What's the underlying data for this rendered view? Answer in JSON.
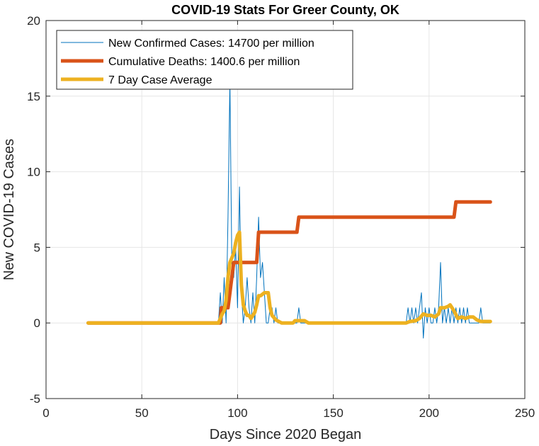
{
  "chart_data": {
    "type": "line",
    "title": "COVID-19 Stats For Greer County, OK",
    "xlabel": "Days Since 2020 Began",
    "ylabel": "New COVID-19 Cases",
    "xlim": [
      0,
      250
    ],
    "ylim": [
      -5,
      20
    ],
    "xticks": [
      0,
      50,
      100,
      150,
      200,
      250
    ],
    "yticks": [
      -5,
      0,
      5,
      10,
      15,
      20
    ],
    "grid": true,
    "legend_position": "top-left",
    "series": [
      {
        "name": "New Confirmed Cases: 14700 per million",
        "color": "#0072BD",
        "style": "thin",
        "points": [
          [
            22,
            0
          ],
          [
            90,
            0
          ],
          [
            91,
            2
          ],
          [
            92,
            0
          ],
          [
            93,
            3
          ],
          [
            94,
            0
          ],
          [
            95,
            7
          ],
          [
            96,
            16
          ],
          [
            97,
            4
          ],
          [
            98,
            3
          ],
          [
            99,
            5
          ],
          [
            100,
            1
          ],
          [
            101,
            9
          ],
          [
            102,
            2
          ],
          [
            103,
            0
          ],
          [
            104,
            1
          ],
          [
            105,
            3
          ],
          [
            106,
            1
          ],
          [
            107,
            0
          ],
          [
            108,
            2
          ],
          [
            109,
            0
          ],
          [
            110,
            3
          ],
          [
            111,
            7
          ],
          [
            112,
            3
          ],
          [
            113,
            4
          ],
          [
            114,
            2
          ],
          [
            115,
            0
          ],
          [
            116,
            0
          ],
          [
            117,
            1
          ],
          [
            118,
            1
          ],
          [
            119,
            0
          ],
          [
            120,
            1
          ],
          [
            121,
            0
          ],
          [
            122,
            0
          ],
          [
            123,
            0
          ],
          [
            130,
            0
          ],
          [
            131,
            0
          ],
          [
            132,
            1
          ],
          [
            133,
            0
          ],
          [
            188,
            0
          ],
          [
            189,
            1
          ],
          [
            190,
            0
          ],
          [
            191,
            1
          ],
          [
            192,
            0
          ],
          [
            193,
            1
          ],
          [
            194,
            0
          ],
          [
            195,
            1
          ],
          [
            196,
            2
          ],
          [
            197,
            -1
          ],
          [
            198,
            1
          ],
          [
            199,
            0
          ],
          [
            200,
            1
          ],
          [
            201,
            0
          ],
          [
            202,
            0
          ],
          [
            203,
            1
          ],
          [
            204,
            0
          ],
          [
            205,
            1
          ],
          [
            206,
            4
          ],
          [
            207,
            0
          ],
          [
            208,
            1
          ],
          [
            209,
            0
          ],
          [
            210,
            1
          ],
          [
            211,
            0
          ],
          [
            212,
            1
          ],
          [
            213,
            0
          ],
          [
            214,
            1
          ],
          [
            215,
            0
          ],
          [
            216,
            1
          ],
          [
            217,
            0
          ],
          [
            218,
            1
          ],
          [
            219,
            0
          ],
          [
            220,
            1
          ],
          [
            221,
            0
          ],
          [
            222,
            0
          ],
          [
            223,
            0
          ],
          [
            224,
            0
          ],
          [
            225,
            0
          ],
          [
            226,
            0
          ],
          [
            227,
            1
          ],
          [
            228,
            0
          ],
          [
            232,
            0
          ]
        ]
      },
      {
        "name": "Cumulative Deaths: 1400.6 per million",
        "color": "#D95319",
        "style": "thick",
        "points": [
          [
            22,
            0
          ],
          [
            91,
            0
          ],
          [
            91.5,
            1
          ],
          [
            95,
            1
          ],
          [
            96,
            2
          ],
          [
            97,
            3
          ],
          [
            98,
            4
          ],
          [
            110,
            4
          ],
          [
            111,
            6
          ],
          [
            131,
            6
          ],
          [
            132,
            7
          ],
          [
            213,
            7
          ],
          [
            214,
            8
          ],
          [
            232,
            8
          ]
        ]
      },
      {
        "name": "7 Day Case Average",
        "color": "#EDB120",
        "style": "thick",
        "points": [
          [
            22,
            0
          ],
          [
            90,
            0
          ],
          [
            91,
            0.3
          ],
          [
            92,
            0.6
          ],
          [
            93,
            0.8
          ],
          [
            94,
            1.5
          ],
          [
            95,
            3
          ],
          [
            96,
            4
          ],
          [
            97,
            4.3
          ],
          [
            98,
            4.6
          ],
          [
            99,
            5.3
          ],
          [
            100,
            5.8
          ],
          [
            101,
            6
          ],
          [
            102,
            2.5
          ],
          [
            103,
            1.2
          ],
          [
            104,
            0.8
          ],
          [
            105,
            0.5
          ],
          [
            106,
            0.5
          ],
          [
            107,
            0.3
          ],
          [
            108,
            0.5
          ],
          [
            109,
            0.7
          ],
          [
            110,
            1.2
          ],
          [
            111,
            1.8
          ],
          [
            112,
            1.8
          ],
          [
            114,
            2
          ],
          [
            116,
            2
          ],
          [
            117,
            1
          ],
          [
            118,
            0.5
          ],
          [
            120,
            0.2
          ],
          [
            123,
            0
          ],
          [
            129,
            0
          ],
          [
            130,
            0.15
          ],
          [
            135,
            0.15
          ],
          [
            137,
            0
          ],
          [
            188,
            0
          ],
          [
            190,
            0.1
          ],
          [
            193,
            0.15
          ],
          [
            195,
            0.3
          ],
          [
            197,
            0.6
          ],
          [
            199,
            0.5
          ],
          [
            201,
            0.5
          ],
          [
            203,
            0.4
          ],
          [
            205,
            0.6
          ],
          [
            206,
            1
          ],
          [
            208,
            1
          ],
          [
            210,
            1.1
          ],
          [
            211,
            1.2
          ],
          [
            213,
            0.8
          ],
          [
            215,
            0.3
          ],
          [
            217,
            0.4
          ],
          [
            219,
            0.3
          ],
          [
            221,
            0.4
          ],
          [
            223,
            0.4
          ],
          [
            225,
            0.2
          ],
          [
            227,
            0.1
          ],
          [
            232,
            0.1
          ]
        ]
      }
    ]
  }
}
